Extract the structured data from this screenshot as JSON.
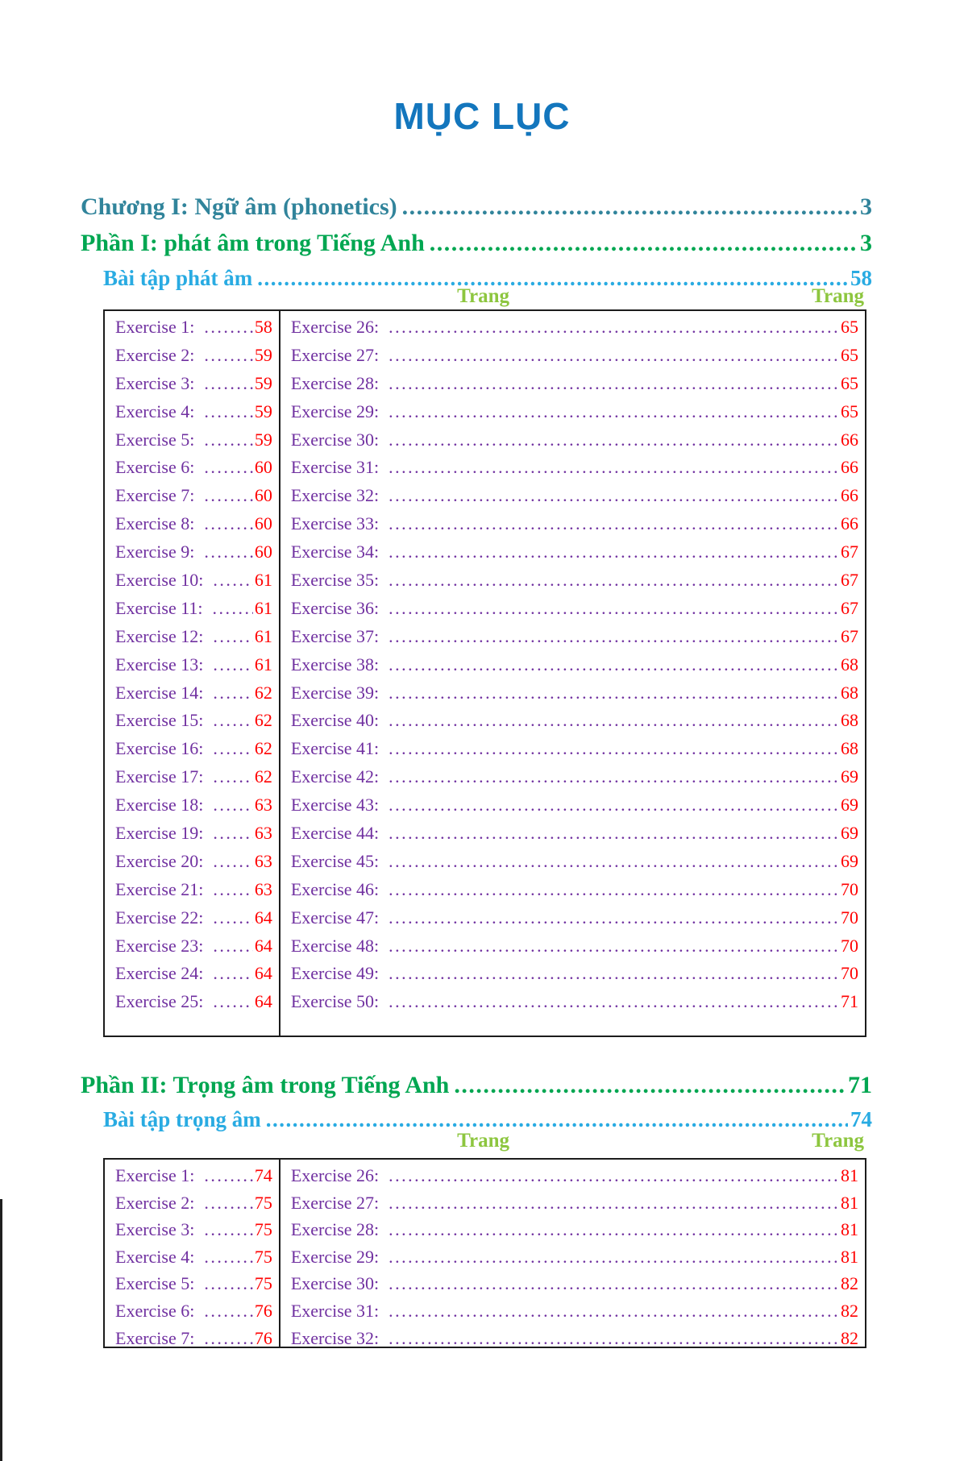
{
  "title": "MỤC LỤC",
  "toc_lines": {
    "chapter1": {
      "label": "Chương I: Ngữ âm (phonetics) ",
      "page": "3"
    },
    "part1": {
      "label": "Phần I: phát âm trong Tiếng Anh",
      "page": "3"
    },
    "part1_exercises": {
      "label": "Bài tập phát âm ",
      "page": "58"
    },
    "part2": {
      "label": "Phần II: Trọng âm trong Tiếng Anh ",
      "page": "71"
    },
    "part2_exercises": {
      "label": "Bài tập trọng âm",
      "page": "74"
    }
  },
  "column_headers": {
    "left": "Trang",
    "right": "Trang"
  },
  "table1": {
    "left": [
      {
        "label": "Exercise 1:",
        "page": "58"
      },
      {
        "label": "Exercise 2:",
        "page": "59"
      },
      {
        "label": "Exercise 3:",
        "page": "59"
      },
      {
        "label": "Exercise 4:",
        "page": "59"
      },
      {
        "label": "Exercise 5:",
        "page": "59"
      },
      {
        "label": "Exercise 6:",
        "page": "60"
      },
      {
        "label": "Exercise 7:",
        "page": "60"
      },
      {
        "label": "Exercise 8:",
        "page": "60"
      },
      {
        "label": "Exercise 9:",
        "page": "60"
      },
      {
        "label": "Exercise 10:",
        "page": "61"
      },
      {
        "label": "Exercise 11:",
        "page": "61"
      },
      {
        "label": "Exercise 12:",
        "page": "61"
      },
      {
        "label": "Exercise 13:",
        "page": "61"
      },
      {
        "label": "Exercise 14:",
        "page": "62"
      },
      {
        "label": "Exercise 15:",
        "page": "62"
      },
      {
        "label": "Exercise 16:",
        "page": "62"
      },
      {
        "label": "Exercise 17:",
        "page": "62"
      },
      {
        "label": "Exercise 18:",
        "page": "63"
      },
      {
        "label": "Exercise 19:",
        "page": "63"
      },
      {
        "label": "Exercise 20:",
        "page": "63"
      },
      {
        "label": "Exercise 21:",
        "page": "63"
      },
      {
        "label": "Exercise 22:",
        "page": "64"
      },
      {
        "label": "Exercise 23:",
        "page": "64"
      },
      {
        "label": "Exercise 24:",
        "page": "64"
      },
      {
        "label": "Exercise 25:",
        "page": "64"
      }
    ],
    "right": [
      {
        "label": "Exercise 26:",
        "page": "65"
      },
      {
        "label": "Exercise 27:",
        "page": "65"
      },
      {
        "label": "Exercise 28:",
        "page": "65"
      },
      {
        "label": "Exercise 29:",
        "page": "65"
      },
      {
        "label": "Exercise 30:",
        "page": "66"
      },
      {
        "label": "Exercise 31:",
        "page": "66"
      },
      {
        "label": "Exercise 32:",
        "page": "66"
      },
      {
        "label": "Exercise 33:",
        "page": "66"
      },
      {
        "label": "Exercise 34:",
        "page": "67"
      },
      {
        "label": "Exercise 35:",
        "page": "67"
      },
      {
        "label": "Exercise 36:",
        "page": "67"
      },
      {
        "label": "Exercise 37:",
        "page": "67"
      },
      {
        "label": "Exercise 38:",
        "page": "68"
      },
      {
        "label": "Exercise 39:",
        "page": "68"
      },
      {
        "label": "Exercise 40:",
        "page": "68"
      },
      {
        "label": "Exercise 41:",
        "page": "68"
      },
      {
        "label": "Exercise 42:",
        "page": "69"
      },
      {
        "label": "Exercise 43:",
        "page": "69"
      },
      {
        "label": "Exercise 44:",
        "page": "69"
      },
      {
        "label": "Exercise 45:",
        "page": "69"
      },
      {
        "label": "Exercise 46:",
        "page": "70"
      },
      {
        "label": "Exercise 47:",
        "page": "70"
      },
      {
        "label": "Exercise 48:",
        "page": "70"
      },
      {
        "label": "Exercise 49:",
        "page": "70"
      },
      {
        "label": "Exercise 50:",
        "page": "71"
      }
    ]
  },
  "table2": {
    "left": [
      {
        "label": "Exercise 1:",
        "page": "74"
      },
      {
        "label": "Exercise 2:",
        "page": "75"
      },
      {
        "label": "Exercise 3:",
        "page": "75"
      },
      {
        "label": "Exercise 4:",
        "page": "75"
      },
      {
        "label": "Exercise 5:",
        "page": "75"
      },
      {
        "label": "Exercise 6:",
        "page": "76"
      },
      {
        "label": "Exercise 7:",
        "page": "76"
      }
    ],
    "right": [
      {
        "label": "Exercise 26:",
        "page": "81"
      },
      {
        "label": "Exercise 27:",
        "page": "81"
      },
      {
        "label": "Exercise 28:",
        "page": "81"
      },
      {
        "label": "Exercise 29:",
        "page": "81"
      },
      {
        "label": "Exercise 30:",
        "page": "82"
      },
      {
        "label": "Exercise 31:",
        "page": "82"
      },
      {
        "label": "Exercise 32:",
        "page": "82"
      }
    ]
  },
  "colors": {
    "title_blue": "#1376BD",
    "chapter_teal": "#31849B",
    "part_green": "#00A651",
    "sub_light_blue": "#29ABE2",
    "trang_green": "#8DC63F",
    "exercise_purple": "#7030A0",
    "page_number_red": "#FF0000"
  }
}
